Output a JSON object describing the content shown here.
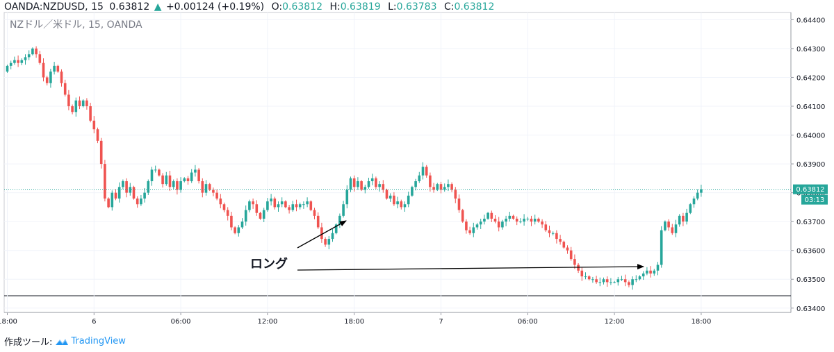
{
  "header": {
    "symbol": "OANDA:NZDUSD, 15",
    "last": "0.63812",
    "change": "+0.00124 (+0.19%)",
    "o_label": "O:",
    "o_value": "0.63812",
    "h_label": "H:",
    "h_value": "0.63819",
    "l_label": "L:",
    "l_value": "0.63783",
    "c_label": "C:",
    "c_value": "0.63812"
  },
  "chart_label": "NZドル／米ドル, 15, OANDA",
  "annotation": "ロング",
  "price_tag": {
    "price": "0.63812",
    "countdown": "03:13"
  },
  "footer": {
    "tool_label": "作成ツール:",
    "brand": "TradingView"
  },
  "colors": {
    "up": "#26a69a",
    "down": "#ef5350",
    "arrow": "#000000",
    "brand": "#2196f3"
  },
  "chart_data": {
    "type": "candlestick",
    "timeframe": "15",
    "y_ticks": [
      "0.64400",
      "0.64300",
      "0.64200",
      "0.64100",
      "0.64000",
      "0.63900",
      "0.63800",
      "0.63700",
      "0.63600",
      "0.63500",
      "0.63400"
    ],
    "ylim": [
      0.63385,
      0.64425
    ],
    "x_ticks": [
      {
        "label": "18:00",
        "bar": 0
      },
      {
        "label": "6",
        "bar": 24
      },
      {
        "label": "06:00",
        "bar": 48
      },
      {
        "label": "12:00",
        "bar": 72
      },
      {
        "label": "18:00",
        "bar": 96
      },
      {
        "label": "7",
        "bar": 120
      },
      {
        "label": "06:00",
        "bar": 144
      },
      {
        "label": "12:00",
        "bar": 168
      },
      {
        "label": "18:00",
        "bar": 192
      }
    ],
    "current_price": 0.63812,
    "close": [
      0.6424,
      0.6425,
      0.6426,
      0.6425,
      0.6426,
      0.6427,
      0.6428,
      0.643,
      0.6428,
      0.6425,
      0.642,
      0.6418,
      0.6422,
      0.6424,
      0.6422,
      0.6418,
      0.6414,
      0.641,
      0.6408,
      0.6412,
      0.641,
      0.6412,
      0.641,
      0.6405,
      0.6402,
      0.6398,
      0.639,
      0.6378,
      0.6375,
      0.638,
      0.6378,
      0.6382,
      0.6384,
      0.638,
      0.6382,
      0.6378,
      0.6376,
      0.6378,
      0.638,
      0.6384,
      0.6388,
      0.6388,
      0.6386,
      0.6383,
      0.6386,
      0.6382,
      0.6384,
      0.6381,
      0.6384,
      0.6385,
      0.6384,
      0.6387,
      0.6388,
      0.6384,
      0.638,
      0.6383,
      0.6381,
      0.638,
      0.6378,
      0.6376,
      0.6374,
      0.6372,
      0.6368,
      0.6366,
      0.6368,
      0.637,
      0.6374,
      0.6377,
      0.6376,
      0.6373,
      0.6371,
      0.6374,
      0.6377,
      0.6378,
      0.6375,
      0.6376,
      0.6377,
      0.6375,
      0.6374,
      0.6376,
      0.6375,
      0.6376,
      0.6376,
      0.6377,
      0.6374,
      0.6372,
      0.6368,
      0.6364,
      0.6362,
      0.6364,
      0.6366,
      0.6369,
      0.6372,
      0.6376,
      0.6381,
      0.6385,
      0.6382,
      0.6384,
      0.6381,
      0.6382,
      0.6384,
      0.6385,
      0.6382,
      0.6383,
      0.6381,
      0.6378,
      0.6379,
      0.6376,
      0.6377,
      0.6375,
      0.6376,
      0.6379,
      0.6382,
      0.6384,
      0.6386,
      0.6389,
      0.6386,
      0.6382,
      0.6381,
      0.6383,
      0.6381,
      0.6382,
      0.6383,
      0.6381,
      0.6378,
      0.6374,
      0.637,
      0.6367,
      0.6366,
      0.6368,
      0.6369,
      0.637,
      0.6371,
      0.6373,
      0.6371,
      0.637,
      0.6368,
      0.637,
      0.6371,
      0.6372,
      0.6371,
      0.637,
      0.637,
      0.6371,
      0.6371,
      0.637,
      0.6371,
      0.637,
      0.6369,
      0.6367,
      0.6366,
      0.6366,
      0.6364,
      0.6363,
      0.6361,
      0.636,
      0.6357,
      0.6355,
      0.6353,
      0.6351,
      0.6351,
      0.635,
      0.635,
      0.6349,
      0.6349,
      0.635,
      0.6349,
      0.6349,
      0.6349,
      0.635,
      0.635,
      0.6349,
      0.6348,
      0.635,
      0.635,
      0.6351,
      0.6352,
      0.6353,
      0.6352,
      0.6353,
      0.6355,
      0.6367,
      0.637,
      0.6368,
      0.6366,
      0.6369,
      0.6372,
      0.637,
      0.6373,
      0.6376,
      0.6378,
      0.638,
      0.63812
    ]
  }
}
